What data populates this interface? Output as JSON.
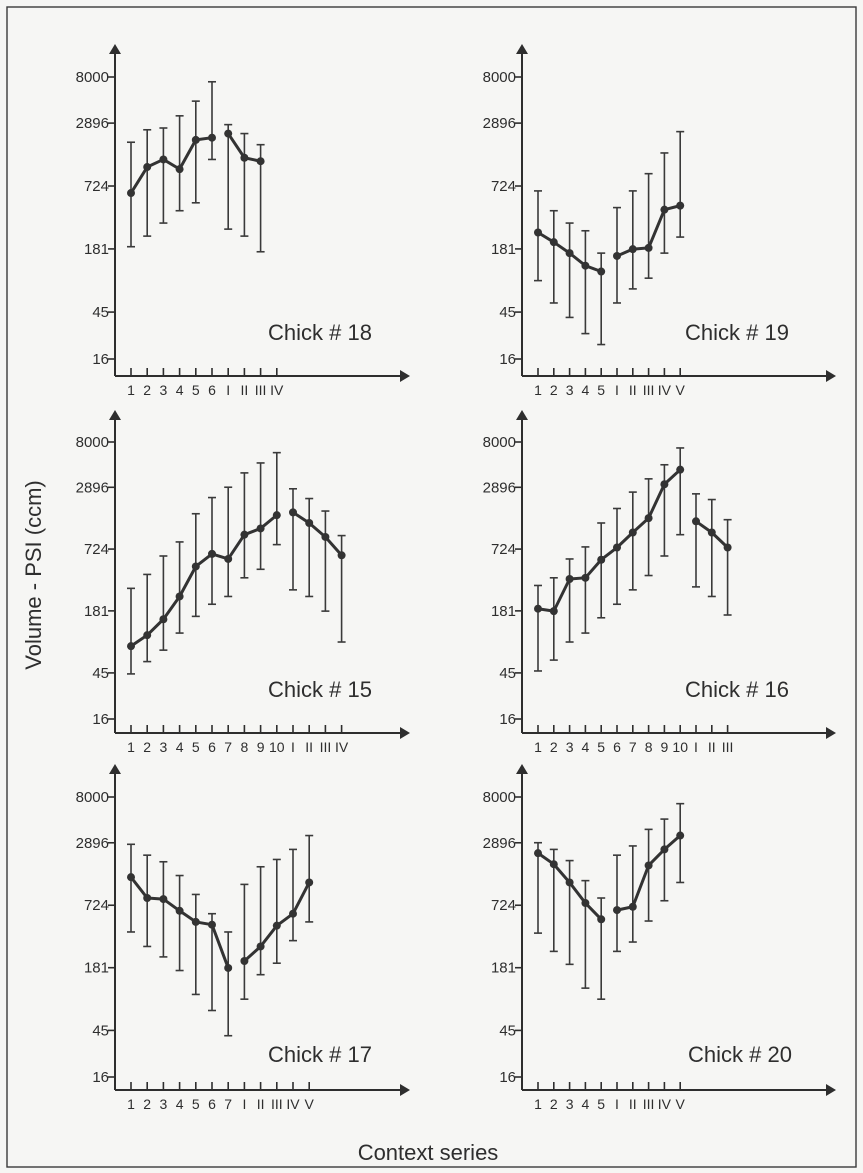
{
  "chart_data": {
    "type": "line",
    "ylabel": "Volume - PSI (ccm)",
    "xlabel": "Context series",
    "y_scale": "log",
    "y_ticks": [
      16,
      45,
      181,
      724,
      2896,
      8000
    ],
    "panels": [
      {
        "title": "Chick # 18",
        "x_labels": [
          "1",
          "2",
          "3",
          "4",
          "5",
          "6",
          "I",
          "II",
          "III",
          "IV"
        ],
        "segments": [
          {
            "points": [
              {
                "x": "1",
                "y": 620,
                "lo": 190,
                "hi": 1900
              },
              {
                "x": "2",
                "y": 1100,
                "lo": 240,
                "hi": 2500
              },
              {
                "x": "3",
                "y": 1300,
                "lo": 320,
                "hi": 2600
              },
              {
                "x": "4",
                "y": 1050,
                "lo": 420,
                "hi": 3400
              },
              {
                "x": "5",
                "y": 2000,
                "lo": 500,
                "hi": 4700
              },
              {
                "x": "6",
                "y": 2100,
                "lo": 1300,
                "hi": 7200
              }
            ]
          },
          {
            "points": [
              {
                "x": "I",
                "y": 2300,
                "lo": 280,
                "hi": 2800
              },
              {
                "x": "II",
                "y": 1350,
                "lo": 240,
                "hi": 2300
              },
              {
                "x": "III",
                "y": 1250,
                "lo": 170,
                "hi": 1800
              }
            ]
          }
        ]
      },
      {
        "title": "Chick # 19",
        "x_labels": [
          "1",
          "2",
          "3",
          "4",
          "5",
          "I",
          "II",
          "III",
          "IV",
          "V"
        ],
        "segments": [
          {
            "points": [
              {
                "x": "1",
                "y": 260,
                "lo": 90,
                "hi": 650
              },
              {
                "x": "2",
                "y": 210,
                "lo": 55,
                "hi": 420
              },
              {
                "x": "3",
                "y": 165,
                "lo": 40,
                "hi": 320
              },
              {
                "x": "4",
                "y": 125,
                "lo": 28,
                "hi": 270
              },
              {
                "x": "5",
                "y": 110,
                "lo": 22,
                "hi": 165
              }
            ]
          },
          {
            "points": [
              {
                "x": "I",
                "y": 155,
                "lo": 55,
                "hi": 450
              },
              {
                "x": "II",
                "y": 180,
                "lo": 75,
                "hi": 650
              },
              {
                "x": "III",
                "y": 185,
                "lo": 95,
                "hi": 950
              },
              {
                "x": "IV",
                "y": 430,
                "lo": 165,
                "hi": 1500
              },
              {
                "x": "V",
                "y": 470,
                "lo": 235,
                "hi": 2400
              }
            ]
          }
        ]
      },
      {
        "title": "Chick # 15",
        "x_labels": [
          "1",
          "2",
          "3",
          "4",
          "5",
          "6",
          "7",
          "8",
          "9",
          "10",
          "I",
          "II",
          "III",
          "IV"
        ],
        "segments": [
          {
            "points": [
              {
                "x": "1",
                "y": 82,
                "lo": 44,
                "hi": 300
              },
              {
                "x": "2",
                "y": 105,
                "lo": 58,
                "hi": 410
              },
              {
                "x": "3",
                "y": 150,
                "lo": 75,
                "hi": 620
              },
              {
                "x": "4",
                "y": 250,
                "lo": 110,
                "hi": 850
              },
              {
                "x": "5",
                "y": 490,
                "lo": 160,
                "hi": 1600
              },
              {
                "x": "6",
                "y": 650,
                "lo": 210,
                "hi": 2300
              },
              {
                "x": "7",
                "y": 580,
                "lo": 250,
                "hi": 2900
              },
              {
                "x": "8",
                "y": 1000,
                "lo": 380,
                "hi": 4000
              },
              {
                "x": "9",
                "y": 1150,
                "lo": 460,
                "hi": 5000
              },
              {
                "x": "10",
                "y": 1550,
                "lo": 800,
                "hi": 6300
              }
            ]
          },
          {
            "points": [
              {
                "x": "I",
                "y": 1650,
                "lo": 290,
                "hi": 2800
              },
              {
                "x": "II",
                "y": 1300,
                "lo": 250,
                "hi": 2250
              },
              {
                "x": "III",
                "y": 950,
                "lo": 180,
                "hi": 1700
              },
              {
                "x": "IV",
                "y": 630,
                "lo": 90,
                "hi": 980
              }
            ]
          }
        ]
      },
      {
        "title": "Chick # 16",
        "x_labels": [
          "1",
          "2",
          "3",
          "4",
          "5",
          "6",
          "7",
          "8",
          "9",
          "10",
          "I",
          "II",
          "III"
        ],
        "segments": [
          {
            "points": [
              {
                "x": "1",
                "y": 190,
                "lo": 47,
                "hi": 320
              },
              {
                "x": "2",
                "y": 180,
                "lo": 60,
                "hi": 380
              },
              {
                "x": "3",
                "y": 370,
                "lo": 90,
                "hi": 580
              },
              {
                "x": "4",
                "y": 380,
                "lo": 110,
                "hi": 760
              },
              {
                "x": "5",
                "y": 570,
                "lo": 155,
                "hi": 1300
              },
              {
                "x": "6",
                "y": 750,
                "lo": 210,
                "hi": 1800
              },
              {
                "x": "7",
                "y": 1050,
                "lo": 290,
                "hi": 2600
              },
              {
                "x": "8",
                "y": 1450,
                "lo": 400,
                "hi": 3500
              },
              {
                "x": "9",
                "y": 3100,
                "lo": 620,
                "hi": 4800
              },
              {
                "x": "10",
                "y": 4300,
                "lo": 1000,
                "hi": 7000
              }
            ]
          },
          {
            "points": [
              {
                "x": "I",
                "y": 1350,
                "lo": 310,
                "hi": 2500
              },
              {
                "x": "II",
                "y": 1050,
                "lo": 250,
                "hi": 2200
              },
              {
                "x": "III",
                "y": 750,
                "lo": 165,
                "hi": 1400
              }
            ]
          }
        ]
      },
      {
        "title": "Chick # 17",
        "x_labels": [
          "1",
          "2",
          "3",
          "4",
          "5",
          "6",
          "7",
          "I",
          "II",
          "III",
          "IV",
          "V"
        ],
        "segments": [
          {
            "points": [
              {
                "x": "1",
                "y": 1350,
                "lo": 400,
                "hi": 2800
              },
              {
                "x": "2",
                "y": 850,
                "lo": 290,
                "hi": 2200
              },
              {
                "x": "3",
                "y": 830,
                "lo": 230,
                "hi": 1900
              },
              {
                "x": "4",
                "y": 640,
                "lo": 170,
                "hi": 1400
              },
              {
                "x": "5",
                "y": 500,
                "lo": 100,
                "hi": 920
              },
              {
                "x": "6",
                "y": 470,
                "lo": 70,
                "hi": 600
              },
              {
                "x": "7",
                "y": 180,
                "lo": 40,
                "hi": 400
              }
            ]
          },
          {
            "points": [
              {
                "x": "I",
                "y": 210,
                "lo": 90,
                "hi": 1150
              },
              {
                "x": "II",
                "y": 290,
                "lo": 155,
                "hi": 1700
              },
              {
                "x": "III",
                "y": 460,
                "lo": 200,
                "hi": 2000
              },
              {
                "x": "IV",
                "y": 600,
                "lo": 330,
                "hi": 2500
              },
              {
                "x": "V",
                "y": 1200,
                "lo": 500,
                "hi": 3400
              }
            ]
          }
        ]
      },
      {
        "title": "Chick # 20",
        "x_labels": [
          "1",
          "2",
          "3",
          "4",
          "5",
          "I",
          "II",
          "III",
          "IV",
          "V"
        ],
        "segments": [
          {
            "points": [
              {
                "x": "1",
                "y": 2300,
                "lo": 390,
                "hi": 2900
              },
              {
                "x": "2",
                "y": 1800,
                "lo": 260,
                "hi": 2500
              },
              {
                "x": "3",
                "y": 1200,
                "lo": 195,
                "hi": 1950
              },
              {
                "x": "4",
                "y": 760,
                "lo": 115,
                "hi": 1250
              },
              {
                "x": "5",
                "y": 530,
                "lo": 90,
                "hi": 850
              }
            ]
          },
          {
            "points": [
              {
                "x": "I",
                "y": 650,
                "lo": 260,
                "hi": 2200
              },
              {
                "x": "II",
                "y": 700,
                "lo": 320,
                "hi": 2700
              },
              {
                "x": "III",
                "y": 1750,
                "lo": 510,
                "hi": 3900
              },
              {
                "x": "IV",
                "y": 2500,
                "lo": 800,
                "hi": 4900
              },
              {
                "x": "V",
                "y": 3400,
                "lo": 1200,
                "hi": 6900
              }
            ]
          }
        ]
      }
    ]
  }
}
